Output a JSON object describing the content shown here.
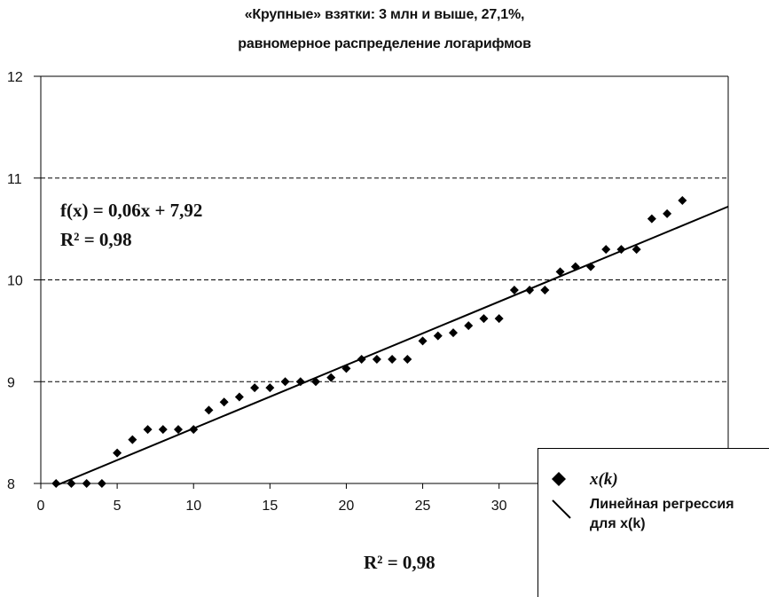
{
  "title_line1": "«Крупные» взятки: 3 млн и выше, 27,1%,",
  "title_line2": "равномерное распределение логарифмов",
  "equation": "f(x) = 0,06x + 7,92",
  "r2_top": "R² = 0,98",
  "r2_bottom": "R² = 0,98",
  "legend": {
    "points_label": "x(k)",
    "line_label_1": "Линейная регрессия",
    "line_label_2": "для x(k)"
  },
  "colors": {
    "points": "#000000",
    "line": "#000000",
    "grid": "#000000"
  },
  "chart_data": {
    "type": "scatter",
    "xlim": [
      0,
      45
    ],
    "ylim": [
      8,
      12
    ],
    "x_ticks": [
      "0",
      "5",
      "10",
      "15",
      "20",
      "25",
      "30"
    ],
    "y_ticks": [
      "8",
      "9",
      "10",
      "11",
      "12"
    ],
    "grid": "horizontal dashed",
    "legend_position": "bottom-right",
    "series": [
      {
        "name": "x(k)",
        "marker": "diamond",
        "points": [
          [
            1,
            8.0
          ],
          [
            2,
            8.0
          ],
          [
            3,
            8.0
          ],
          [
            4,
            8.0
          ],
          [
            5,
            8.3
          ],
          [
            6,
            8.43
          ],
          [
            7,
            8.53
          ],
          [
            8,
            8.53
          ],
          [
            9,
            8.53
          ],
          [
            10,
            8.53
          ],
          [
            11,
            8.72
          ],
          [
            12,
            8.8
          ],
          [
            13,
            8.85
          ],
          [
            14,
            8.94
          ],
          [
            15,
            8.94
          ],
          [
            16,
            9.0
          ],
          [
            17,
            9.0
          ],
          [
            18,
            9.0
          ],
          [
            19,
            9.04
          ],
          [
            20,
            9.13
          ],
          [
            21,
            9.22
          ],
          [
            22,
            9.22
          ],
          [
            23,
            9.22
          ],
          [
            24,
            9.22
          ],
          [
            25,
            9.4
          ],
          [
            26,
            9.45
          ],
          [
            27,
            9.48
          ],
          [
            28,
            9.55
          ],
          [
            29,
            9.62
          ],
          [
            30,
            9.62
          ],
          [
            31,
            9.9
          ],
          [
            32,
            9.9
          ],
          [
            33,
            9.9
          ],
          [
            34,
            10.08
          ],
          [
            35,
            10.13
          ],
          [
            36,
            10.13
          ],
          [
            37,
            10.3
          ],
          [
            38,
            10.3
          ],
          [
            39,
            10.3
          ],
          [
            40,
            10.6
          ],
          [
            41,
            10.65
          ],
          [
            42,
            10.78
          ]
        ]
      },
      {
        "name": "Линейная регрессия для x(k)",
        "type": "line",
        "points": [
          [
            1,
            7.98
          ],
          [
            45,
            10.72
          ]
        ]
      }
    ]
  }
}
